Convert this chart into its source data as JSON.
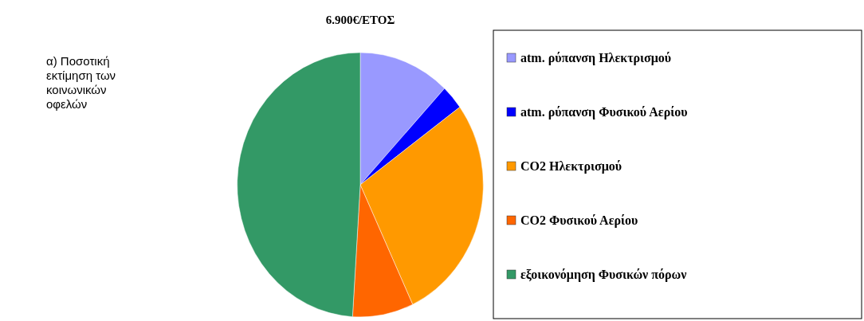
{
  "chart_data": {
    "type": "pie",
    "title": "6.900€/ΕΤΟΣ",
    "categories": [
      "atm. ρύπανση Ηλεκτρισμού",
      "atm. ρύπανση Φυσικού Αερίου",
      "CO2 Ηλεκτρισμού",
      "CO2 Φυσικού Αερίου",
      "εξοικονόμηση Φυσικών πόρων"
    ],
    "values": [
      12,
      3,
      28,
      8,
      49
    ],
    "colors": [
      "#9999ff",
      "#0000ff",
      "#ff9900",
      "#ff6600",
      "#339966"
    ],
    "legend": "right",
    "annotations": [
      "α) Ποσοτική εκτίμηση των κοινωνικών οφελών"
    ]
  }
}
